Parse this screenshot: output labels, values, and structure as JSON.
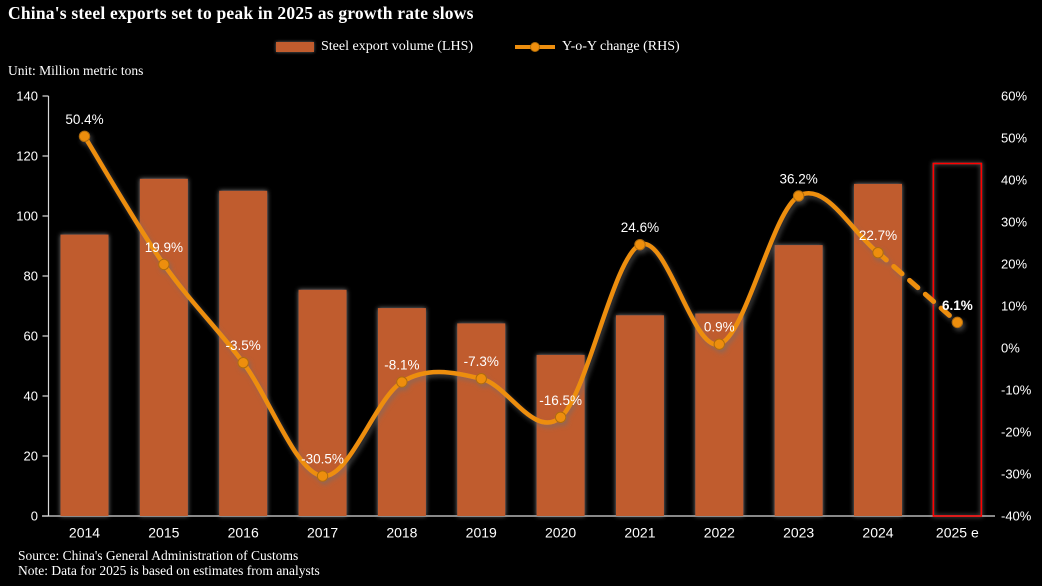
{
  "title": "China's steel exports set to peak in 2025 as growth rate slows",
  "unit_label": "Unit: Million metric tons",
  "legend": [
    {
      "label": "Steel export volume (LHS)",
      "swatch": "bar-swatch"
    },
    {
      "label": "Y-o-Y change  (RHS)",
      "swatch": "line-swatch"
    }
  ],
  "footer": {
    "source": "Source: China's General Administration of Customs",
    "note": "Note: Data for 2025 is based on estimates from analysts"
  },
  "colors": {
    "background": "#000000",
    "bar": "#C05C2E",
    "line": "#ED8E0E",
    "marker_stroke": "#B06C07",
    "estimate_bar_outline": "#FF0000",
    "axis": "#D9D9D9",
    "text": "#FFFFFF"
  },
  "chart_data": {
    "type": "combo-bar-line",
    "categories": [
      "2014",
      "2015",
      "2016",
      "2017",
      "2018",
      "2019",
      "2020",
      "2021",
      "2022",
      "2023",
      "2024",
      "2025 e"
    ],
    "series": [
      {
        "name": "Steel export volume (LHS)",
        "type": "bar",
        "axis": "left",
        "values": [
          93.8,
          112.4,
          108.4,
          75.4,
          69.3,
          64.2,
          53.7,
          66.9,
          67.5,
          90.3,
          110.7,
          117.5
        ],
        "last_is_estimate_outline": true
      },
      {
        "name": "Y-o-Y change (RHS)",
        "type": "line",
        "axis": "right",
        "values": [
          50.4,
          19.9,
          -3.5,
          -30.5,
          -8.1,
          -7.3,
          -16.5,
          24.6,
          0.9,
          36.2,
          22.7,
          6.1
        ],
        "point_labels": [
          "50.4%",
          "19.9%",
          "-3.5%",
          "-30.5%",
          "-8.1%",
          "-7.3%",
          "-16.5%",
          "24.6%",
          "0.9%",
          "36.2%",
          "22.7%",
          "6.1%"
        ],
        "dashed_last_segment": true,
        "last_label_bold": true
      }
    ],
    "left_axis": {
      "title": "Unit: Million metric tons",
      "min": 0,
      "max": 140,
      "step": 20,
      "ticks": [
        "0",
        "20",
        "40",
        "60",
        "80",
        "100",
        "120",
        "140"
      ]
    },
    "right_axis": {
      "min": -40,
      "max": 60,
      "step": 10,
      "ticks": [
        "-40%",
        "-30%",
        "-20%",
        "-10%",
        "0%",
        "10%",
        "20%",
        "30%",
        "40%",
        "50%",
        "60%"
      ]
    },
    "grid": false,
    "legend_position": "top-center"
  }
}
